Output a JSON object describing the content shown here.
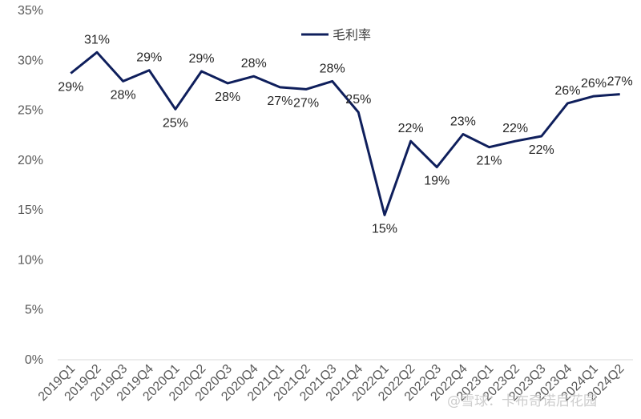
{
  "chart_data": {
    "type": "line",
    "categories": [
      "2019Q1",
      "2019Q2",
      "2019Q3",
      "2019Q4",
      "2020Q1",
      "2020Q2",
      "2020Q3",
      "2020Q4",
      "2021Q1",
      "2021Q2",
      "2021Q3",
      "2021Q4",
      "2022Q1",
      "2022Q2",
      "2022Q3",
      "2022Q4",
      "2023Q1",
      "2023Q2",
      "2023Q3",
      "2023Q4",
      "2024Q1",
      "2024Q2"
    ],
    "series": [
      {
        "name": "毛利率",
        "values": [
          28.7,
          30.8,
          27.9,
          29.0,
          25.1,
          28.9,
          27.7,
          28.4,
          27.3,
          27.1,
          27.9,
          24.8,
          14.5,
          21.9,
          19.3,
          22.6,
          21.3,
          21.9,
          22.4,
          25.7,
          26.4,
          26.6
        ],
        "labels": [
          "29%",
          "31%",
          "28%",
          "29%",
          "25%",
          "29%",
          "28%",
          "28%",
          "27%",
          "27%",
          "28%",
          "25%",
          "15%",
          "22%",
          "19%",
          "23%",
          "21%",
          "22%",
          "22%",
          "26%",
          "26%",
          "27%"
        ],
        "color": "#0f1f5c"
      }
    ],
    "yticks": [
      "0%",
      "5%",
      "10%",
      "15%",
      "20%",
      "25%",
      "30%",
      "35%"
    ],
    "ylim": [
      0,
      35
    ],
    "legend_position": "top-center",
    "grid": false
  },
  "watermark": "@雪球：卡布奇诺后花园"
}
